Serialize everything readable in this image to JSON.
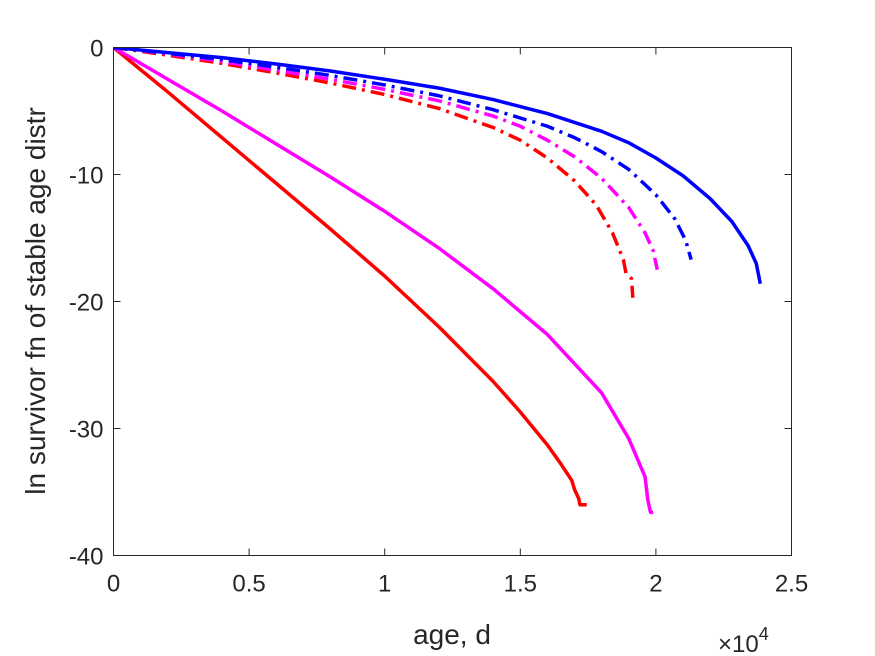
{
  "chart_data": {
    "type": "line",
    "xlabel": "age, d",
    "ylabel": "ln survivor fn of stable age distr",
    "x_exponent_label": {
      "base": "×10",
      "power": "4"
    },
    "xlim": [
      0,
      25000
    ],
    "ylim": [
      -40,
      0
    ],
    "xticks": [
      0,
      5000,
      10000,
      15000,
      20000,
      25000
    ],
    "xtick_labels": [
      "0",
      "0.5",
      "1",
      "1.5",
      "2",
      "2.5"
    ],
    "yticks": [
      0,
      -10,
      -20,
      -30,
      -40
    ],
    "ytick_labels": [
      "0",
      "-10",
      "-20",
      "-30",
      "-40"
    ],
    "grid": false,
    "legend": null,
    "series": [
      {
        "color": "#ff0000",
        "style": "solid",
        "x": [
          0,
          2000,
          4000,
          6000,
          8000,
          10000,
          12000,
          14000,
          15000,
          16000,
          16500,
          16900,
          17000,
          17150,
          17200,
          17450
        ],
        "y": [
          0,
          -3.5,
          -7.1,
          -10.7,
          -14.3,
          -18.0,
          -22.0,
          -26.3,
          -28.7,
          -31.3,
          -32.8,
          -34.1,
          -34.8,
          -35.5,
          -36.0,
          -36.0
        ]
      },
      {
        "color": "#ff00ff",
        "style": "solid",
        "x": [
          0,
          2000,
          4000,
          6000,
          8000,
          10000,
          12000,
          14000,
          16000,
          18000,
          19000,
          19600,
          19700,
          19800,
          19900
        ],
        "y": [
          0,
          -2.5,
          -5.0,
          -7.6,
          -10.2,
          -12.9,
          -15.8,
          -19.0,
          -22.6,
          -27.2,
          -30.8,
          -33.8,
          -35.6,
          -36.6,
          -36.6
        ]
      },
      {
        "color": "#ff0000",
        "style": "dashdot",
        "x": [
          0,
          2000,
          4000,
          6000,
          8000,
          10000,
          12000,
          14000,
          15000,
          16000,
          17000,
          17800,
          18400,
          18800,
          18900,
          19100,
          19150
        ],
        "y": [
          0,
          -0.6,
          -1.25,
          -2.0,
          -2.8,
          -3.7,
          -4.8,
          -6.3,
          -7.3,
          -8.7,
          -10.5,
          -12.4,
          -14.6,
          -16.7,
          -17.8,
          -18.2,
          -19.7
        ]
      },
      {
        "color": "#ff00ff",
        "style": "dashdot",
        "x": [
          0,
          2000,
          4000,
          6000,
          8000,
          10000,
          12000,
          14000,
          15000,
          16000,
          17000,
          18000,
          19000,
          19600,
          19900,
          20050
        ],
        "y": [
          0,
          -0.5,
          -1.1,
          -1.8,
          -2.5,
          -3.3,
          -4.2,
          -5.4,
          -6.2,
          -7.3,
          -8.6,
          -10.3,
          -12.6,
          -14.6,
          -16.0,
          -17.5
        ]
      },
      {
        "color": "#0000ff",
        "style": "dashdot",
        "x": [
          0,
          2000,
          4000,
          6000,
          8000,
          10000,
          12000,
          14000,
          16000,
          17000,
          18000,
          19000,
          20000,
          20700,
          21100,
          21300
        ],
        "y": [
          0,
          -0.45,
          -0.95,
          -1.55,
          -2.2,
          -2.95,
          -3.8,
          -4.9,
          -6.2,
          -7.1,
          -8.2,
          -9.6,
          -11.6,
          -13.5,
          -15.2,
          -16.7
        ]
      },
      {
        "color": "#0000ff",
        "style": "solid",
        "x": [
          0,
          2000,
          4000,
          6000,
          8000,
          10000,
          12000,
          14000,
          16000,
          18000,
          19000,
          20000,
          21000,
          22000,
          22800,
          23400,
          23700,
          23850
        ],
        "y": [
          0,
          -0.4,
          -0.8,
          -1.3,
          -1.85,
          -2.5,
          -3.2,
          -4.1,
          -5.2,
          -6.6,
          -7.5,
          -8.7,
          -10.1,
          -11.9,
          -13.7,
          -15.6,
          -17.0,
          -18.6
        ]
      }
    ]
  }
}
